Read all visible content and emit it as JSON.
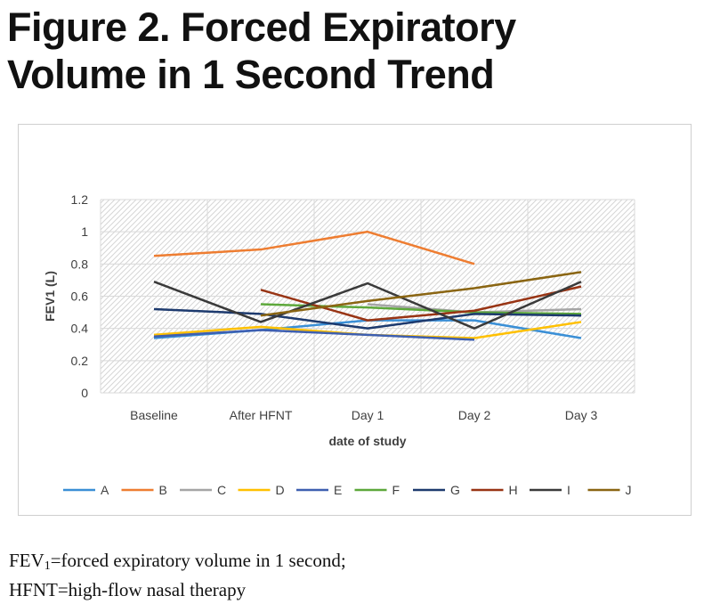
{
  "title_lines": [
    "Figure 2. Forced Expiratory",
    "Volume in 1 Second Trend"
  ],
  "footnote": {
    "line1_fev": "FEV",
    "line1_sub": "1",
    "line1_rest": "=forced expiratory volume in 1 second;",
    "line2": "HFNT=high-flow nasal therapy"
  },
  "chart_data": {
    "type": "line",
    "title": "",
    "xlabel": "date of study",
    "ylabel": "FEV1 (L)",
    "categories": [
      "Baseline",
      "After HFNT",
      "Day 1",
      "Day 2",
      "Day 3"
    ],
    "ylim": [
      0,
      1.2
    ],
    "yticks": [
      0,
      0.2,
      0.4,
      0.6,
      0.8,
      1,
      1.2
    ],
    "ytick_labels": [
      "0",
      "0.2",
      "0.4",
      "0.6",
      "0.8",
      "1",
      "1.2"
    ],
    "grid": true,
    "legend_position": "bottom",
    "series": [
      {
        "name": "A",
        "color": "#3a8fd6",
        "values": [
          0.34,
          0.39,
          0.45,
          0.45,
          0.34
        ]
      },
      {
        "name": "B",
        "color": "#ee7d31",
        "values": [
          0.85,
          0.89,
          1.0,
          0.8,
          null
        ]
      },
      {
        "name": "C",
        "color": "#a5a5a5",
        "values": [
          null,
          null,
          0.55,
          0.5,
          0.52
        ]
      },
      {
        "name": "D",
        "color": "#ffc000",
        "values": [
          0.36,
          0.41,
          0.36,
          0.34,
          0.44
        ]
      },
      {
        "name": "E",
        "color": "#3e5fb0",
        "values": [
          0.35,
          0.39,
          0.36,
          0.33,
          null
        ]
      },
      {
        "name": "F",
        "color": "#5da83b",
        "values": [
          null,
          0.55,
          0.53,
          0.5,
          0.49
        ]
      },
      {
        "name": "G",
        "color": "#1d3a6e",
        "values": [
          0.52,
          0.49,
          0.4,
          0.49,
          0.48
        ]
      },
      {
        "name": "H",
        "color": "#983414",
        "values": [
          null,
          0.64,
          0.45,
          0.51,
          0.66
        ]
      },
      {
        "name": "I",
        "color": "#3a3a3a",
        "values": [
          0.69,
          0.44,
          0.68,
          0.4,
          0.69
        ]
      },
      {
        "name": "J",
        "color": "#8a6512",
        "values": [
          null,
          0.48,
          0.57,
          0.65,
          0.75
        ]
      }
    ]
  }
}
